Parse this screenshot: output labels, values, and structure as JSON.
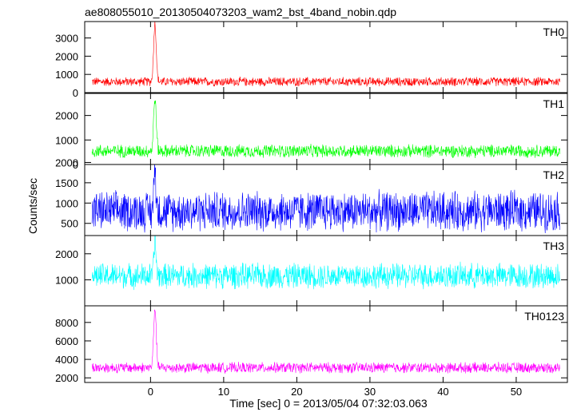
{
  "chart_data": {
    "type": "line",
    "title": "ae808055010_20130504073203_wam2_bst_4band_nobin.qdp",
    "xlabel": "Time [sec] 0 = 2013/05/04 07:32:03.063",
    "ylabel": "Counts/sec",
    "xlim": [
      -9,
      57
    ],
    "x_ticks": [
      0,
      10,
      20,
      30,
      40,
      50
    ],
    "grid": false,
    "shared_x_axis": true,
    "panels": [
      {
        "name": "TH0",
        "color": "#ff0000",
        "ylim": [
          0,
          3900
        ],
        "y_ticks": [
          0,
          1000,
          2000,
          3000
        ],
        "baseline": 600,
        "noise_amplitude": 280,
        "burst": {
          "peak_time": 0.6,
          "peak_value": 3800,
          "width": 0.25
        },
        "x": [
          -8,
          -5,
          0,
          0.3,
          0.6,
          1.0,
          2,
          10,
          20,
          30,
          40,
          50,
          56
        ],
        "values": [
          600,
          600,
          600,
          1500,
          3800,
          900,
          600,
          600,
          600,
          600,
          600,
          600,
          600
        ]
      },
      {
        "name": "TH1",
        "color": "#00ff00",
        "ylim": [
          0,
          2900
        ],
        "y_ticks": [
          0,
          1000,
          2000
        ],
        "baseline": 550,
        "noise_amplitude": 300,
        "burst": {
          "peak_time": 0.6,
          "peak_value": 2700,
          "width": 0.25
        },
        "x": [
          -8,
          -5,
          0,
          0.3,
          0.6,
          1.0,
          2,
          10,
          20,
          30,
          40,
          50,
          56
        ],
        "values": [
          550,
          550,
          550,
          1200,
          2700,
          800,
          550,
          550,
          550,
          550,
          550,
          550,
          550
        ]
      },
      {
        "name": "TH2",
        "color": "#0000ff",
        "ylim": [
          200,
          1950
        ],
        "y_ticks": [
          500,
          1000,
          1500,
          2000
        ],
        "baseline": 800,
        "noise_amplitude": 550,
        "burst": {
          "peak_time": 0.6,
          "peak_value": 1900,
          "width": 0.2
        },
        "x": [
          -8,
          -5,
          0,
          10,
          20,
          30,
          40,
          50,
          56
        ],
        "values": [
          800,
          800,
          800,
          800,
          800,
          800,
          800,
          800,
          800
        ]
      },
      {
        "name": "TH3",
        "color": "#00ffff",
        "ylim": [
          0,
          2700
        ],
        "y_ticks": [
          1000,
          2000
        ],
        "baseline": 1150,
        "noise_amplitude": 550,
        "burst": {
          "peak_time": 0.6,
          "peak_value": 2500,
          "width": 0.2
        },
        "x": [
          -8,
          -5,
          0,
          10,
          20,
          30,
          40,
          50,
          56
        ],
        "values": [
          1150,
          1150,
          1150,
          1150,
          1150,
          1150,
          1150,
          1150,
          1150
        ]
      },
      {
        "name": "TH0123",
        "color": "#ff00ff",
        "ylim": [
          1500,
          9800
        ],
        "y_ticks": [
          2000,
          4000,
          6000,
          8000
        ],
        "baseline": 3100,
        "noise_amplitude": 650,
        "burst": {
          "peak_time": 0.6,
          "peak_value": 9600,
          "width": 0.25
        },
        "x": [
          -8,
          -5,
          0,
          0.3,
          0.6,
          1.0,
          2,
          10,
          20,
          30,
          40,
          50,
          56
        ],
        "values": [
          3100,
          3100,
          3100,
          5500,
          9600,
          3800,
          3100,
          3100,
          3100,
          3100,
          3100,
          3100,
          3100
        ]
      }
    ]
  }
}
